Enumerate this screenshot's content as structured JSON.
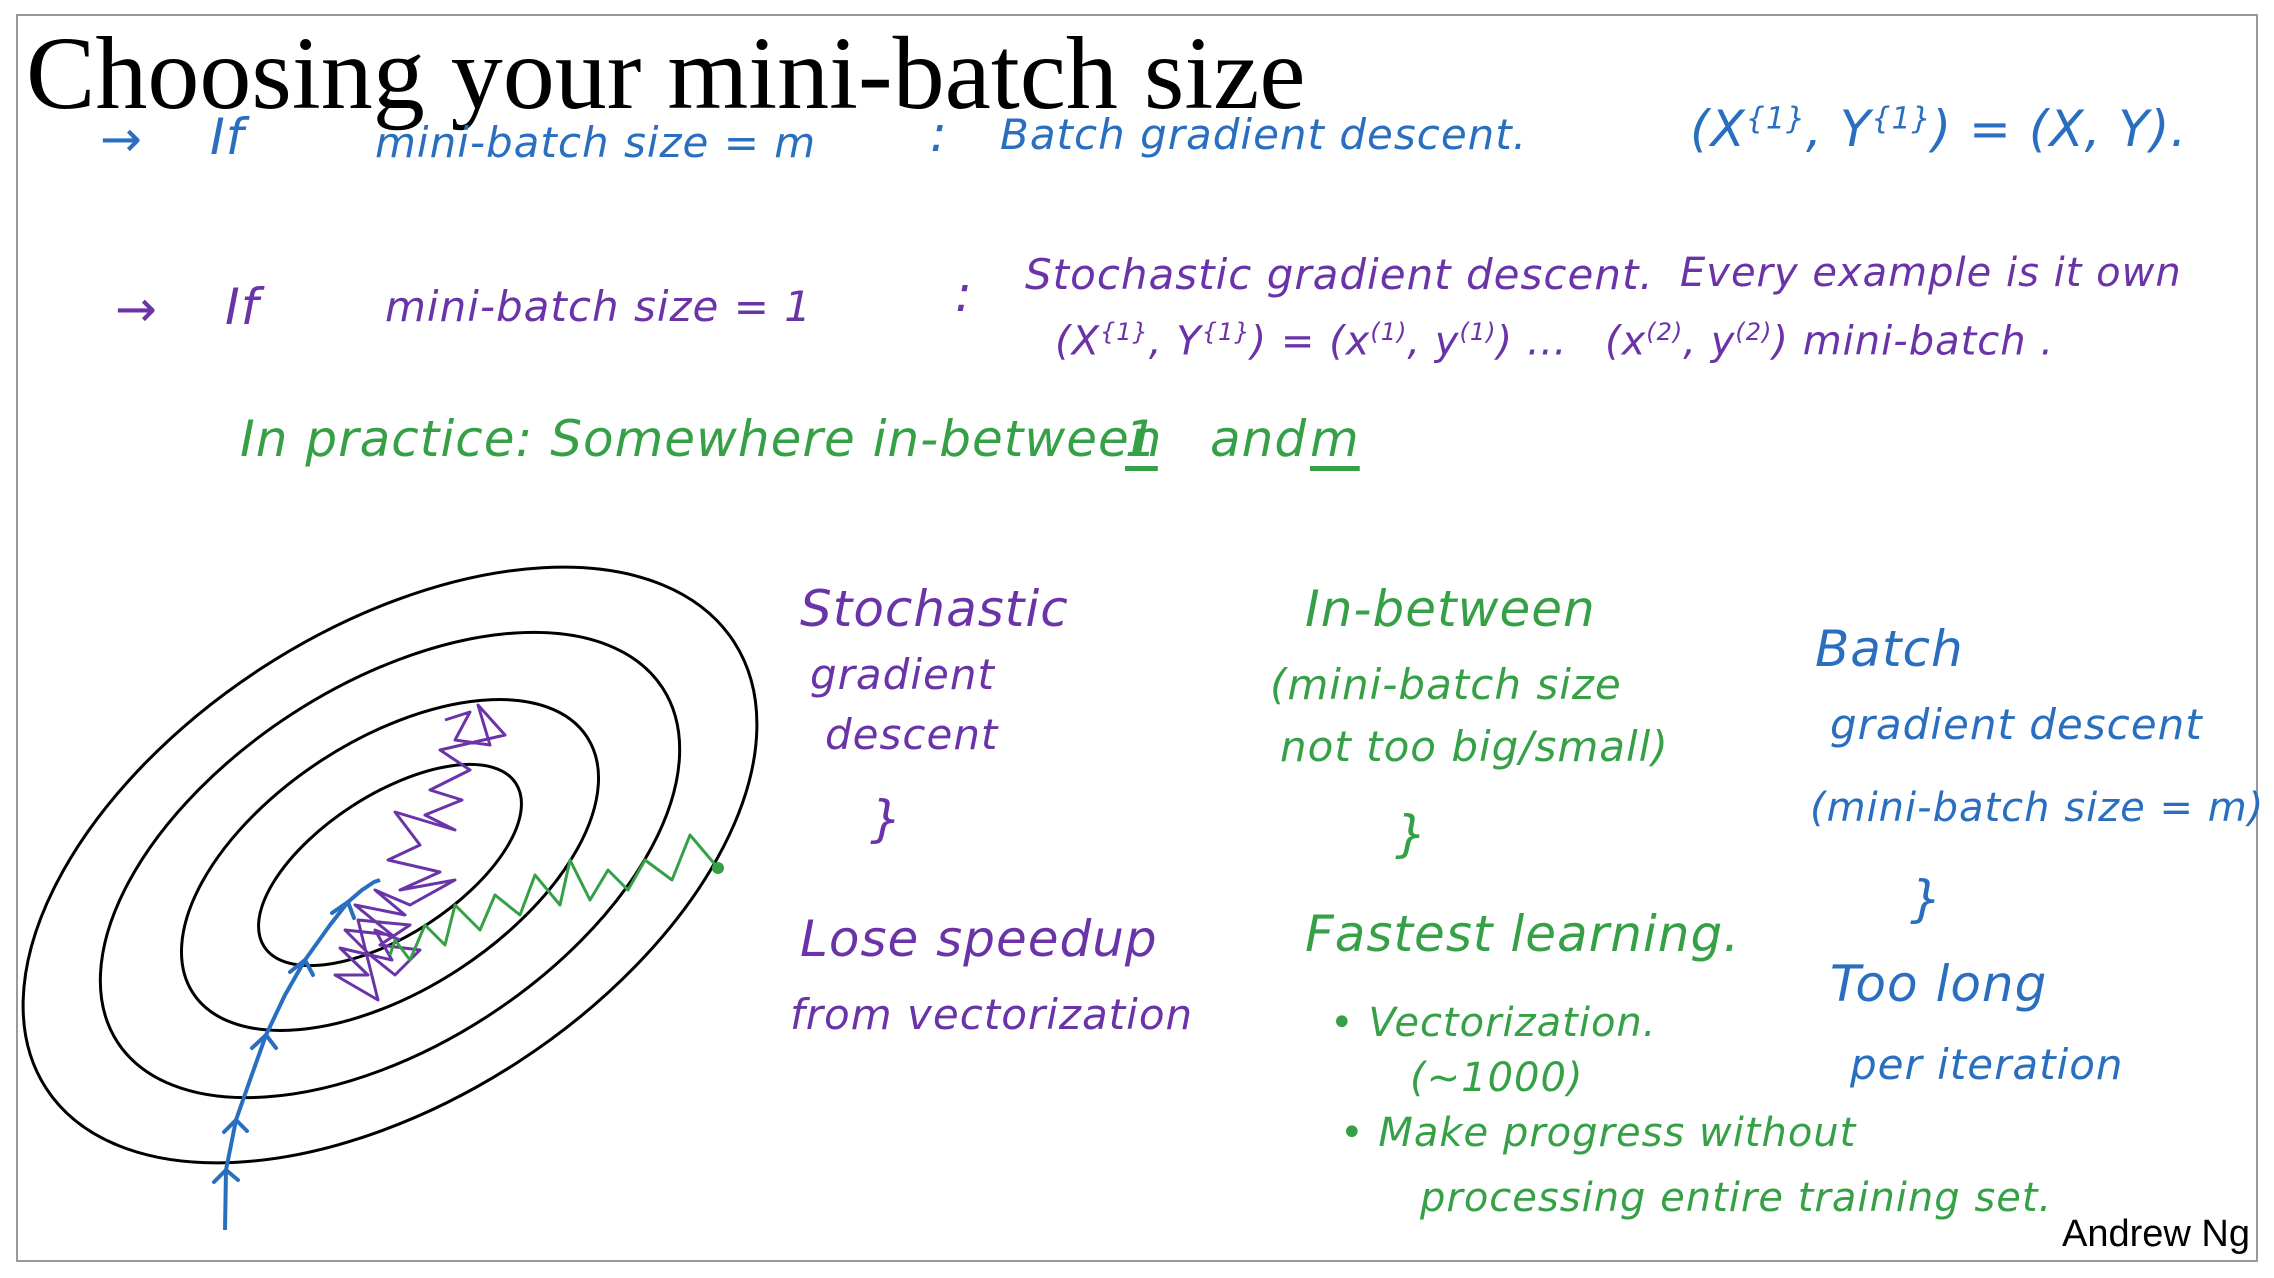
{
  "slide": {
    "title": "Choosing your mini-batch size",
    "author": "Andrew Ng"
  },
  "line1": {
    "arrow": "→",
    "lead": "If",
    "condition": "mini-batch size = m",
    "sep": ":",
    "method": "Batch gradient descent.",
    "formula_lhs": "(X",
    "formula_sup1": "{1}",
    "formula_mid": ", Y",
    "formula_sup2": "{1}",
    "formula_rhs": ") = (X, Y)."
  },
  "line2": {
    "arrow": "→",
    "lead": "If",
    "condition": "mini-batch size = 1",
    "sep": ":",
    "method": "Stochastic gradient descent.",
    "note": "Every example is it own",
    "formula_a": "(X",
    "formula_a_sup1": "{1}",
    "formula_a_mid": ", Y",
    "formula_a_sup2": "{1}",
    "formula_a_eq": ") = (x",
    "formula_a_sup3": "(1)",
    "formula_a_mid2": ", y",
    "formula_a_sup4": "(1)",
    "formula_a_end": ") …",
    "formula_b": "(x",
    "formula_b_sup1": "(2)",
    "formula_b_mid": ", y",
    "formula_b_sup2": "(2)",
    "formula_b_end": ") mini-batch ."
  },
  "line3": {
    "text": "In practice: Somewhere in-between",
    "one": "1",
    "and": "and",
    "m": "m"
  },
  "stochastic": {
    "title_1": "Stochastic",
    "title_2": "gradient",
    "title_3": "descent",
    "brace": "}",
    "result_1": "Lose speedup",
    "result_2": "from vectorization"
  },
  "inbetween": {
    "title": "In-between",
    "sub_1": "(mini-batch size",
    "sub_2": "not too big/small)",
    "brace": "}",
    "result": "Fastest learning.",
    "bullet_1": "Vectorization.",
    "bullet_1_sub": "(~1000)",
    "bullet_2_1": "Make progress without",
    "bullet_2_2": "processing entire training set."
  },
  "batch": {
    "title_1": "Batch",
    "title_2": "gradient descent",
    "sub": "(mini-batch size = m)",
    "brace": "}",
    "result_1": "Too long",
    "result_2": "per iteration"
  },
  "colors": {
    "blue": "#2a6fbf",
    "purple": "#6a34a8",
    "green": "#36a046",
    "black": "#000000"
  }
}
